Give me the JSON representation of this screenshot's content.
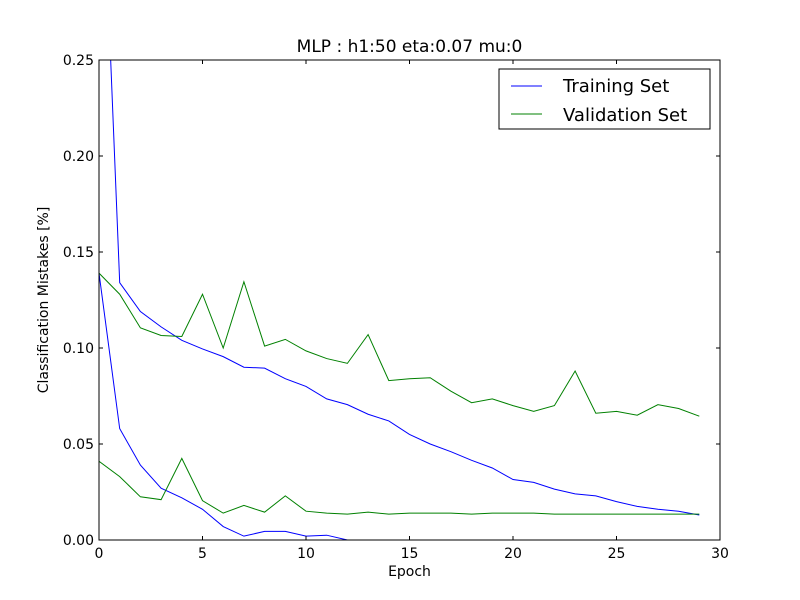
{
  "chart_data": {
    "type": "line",
    "title": "MLP : h1:50 eta:0.07 mu:0",
    "xlabel": "Epoch",
    "ylabel": "Classification Mistakes [%]",
    "xlim": [
      0,
      30
    ],
    "ylim": [
      0,
      0.25
    ],
    "xticks": [
      0,
      5,
      10,
      15,
      20,
      25,
      30
    ],
    "xtick_labels": [
      "0",
      "5",
      "10",
      "15",
      "20",
      "25",
      "30"
    ],
    "yticks": [
      0,
      0.05,
      0.1,
      0.15,
      0.2,
      0.25
    ],
    "ytick_labels": [
      "0.00",
      "0.05",
      "0.10",
      "0.15",
      "0.20",
      "0.25"
    ],
    "grid": false,
    "legend_position": "top-right",
    "legend": [
      {
        "label": "Training Set",
        "color": "#0000ff"
      },
      {
        "label": "Validation Set",
        "color": "#008000"
      }
    ],
    "series": [
      {
        "name": "Training Set",
        "color": "#0000ff",
        "x": [
          0,
          1,
          2,
          3,
          4,
          5,
          6,
          7,
          8,
          9,
          10,
          11,
          12,
          13,
          14,
          15,
          16,
          17,
          18,
          19,
          20,
          21,
          22,
          23,
          24,
          25,
          26,
          27,
          28,
          29
        ],
        "values": [
          0.4,
          0.134,
          0.119,
          0.111,
          0.104,
          0.0995,
          0.0955,
          0.09,
          0.0895,
          0.084,
          0.08,
          0.0735,
          0.0705,
          0.0655,
          0.062,
          0.055,
          0.05,
          0.046,
          0.0415,
          0.0375,
          0.0315,
          0.03,
          0.0265,
          0.024,
          0.023,
          0.02,
          0.0175,
          0.016,
          0.015,
          0.013
        ]
      },
      {
        "name": "Validation Set",
        "color": "#008000",
        "x": [
          0,
          1,
          2,
          3,
          4,
          5,
          6,
          7,
          8,
          9,
          10,
          11,
          12,
          13,
          14,
          15,
          16,
          17,
          18,
          19,
          20,
          21,
          22,
          23,
          24,
          25,
          26,
          27,
          28,
          29
        ],
        "values": [
          0.139,
          0.128,
          0.1105,
          0.1065,
          0.106,
          0.128,
          0.1,
          0.1345,
          0.101,
          0.1045,
          0.0985,
          0.0945,
          0.092,
          0.107,
          0.083,
          0.084,
          0.0845,
          0.0775,
          0.0715,
          0.0735,
          0.07,
          0.067,
          0.07,
          0.088,
          0.066,
          0.067,
          0.065,
          0.0705,
          0.0685,
          0.0645
        ]
      },
      {
        "name": "",
        "color": "#0000ff",
        "x": [
          0,
          1,
          2,
          3,
          4,
          5,
          6,
          7,
          8,
          9,
          10,
          11,
          12,
          13,
          14,
          15,
          16,
          17,
          18,
          19,
          20,
          21,
          22,
          23,
          24,
          25,
          26,
          27,
          28,
          29
        ],
        "values": [
          0.139,
          0.058,
          0.039,
          0.027,
          0.022,
          0.016,
          0.007,
          0.002,
          0.0045,
          0.0045,
          0.002,
          0.0025,
          0.0,
          0.0,
          0.0,
          0.0,
          0.0,
          0.0,
          0.0,
          0.0,
          0.0,
          0.0,
          0.0,
          0.0,
          0.0,
          0.0,
          0.0,
          0.0,
          0.0,
          0.0
        ]
      },
      {
        "name": "",
        "color": "#008000",
        "x": [
          0,
          1,
          2,
          3,
          4,
          5,
          6,
          7,
          8,
          9,
          10,
          11,
          12,
          13,
          14,
          15,
          16,
          17,
          18,
          19,
          20,
          21,
          22,
          23,
          24,
          25,
          26,
          27,
          28,
          29
        ],
        "values": [
          0.041,
          0.033,
          0.0225,
          0.021,
          0.0425,
          0.0205,
          0.014,
          0.018,
          0.0145,
          0.023,
          0.015,
          0.014,
          0.0135,
          0.0145,
          0.0135,
          0.014,
          0.014,
          0.014,
          0.0135,
          0.014,
          0.014,
          0.014,
          0.0135,
          0.0135,
          0.0135,
          0.0135,
          0.0135,
          0.0135,
          0.0135,
          0.0135
        ]
      }
    ]
  }
}
